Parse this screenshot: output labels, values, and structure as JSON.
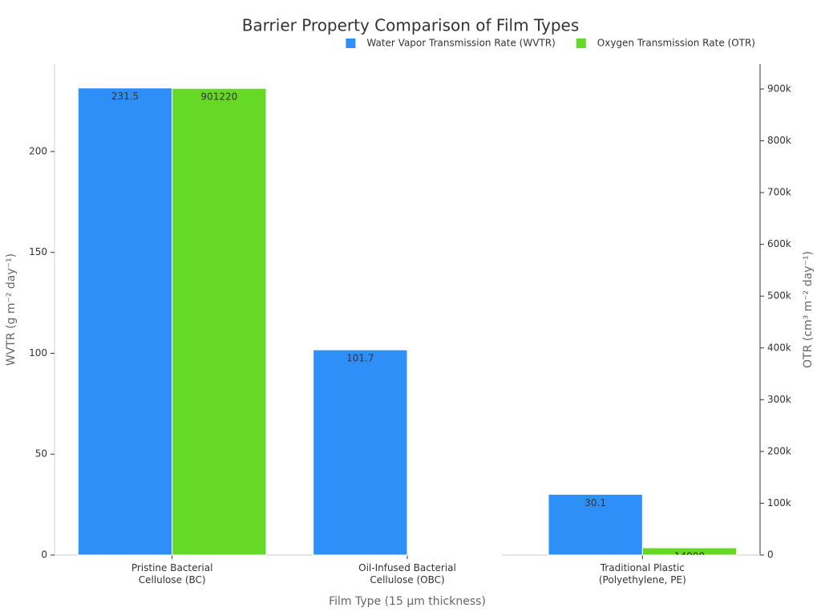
{
  "chart_data": {
    "type": "bar",
    "title": "Barrier Property Comparison of Film Types",
    "x_label": "Film Type (15 µm thickness)",
    "y_label": "WVTR (g m⁻² day⁻¹)",
    "y2_label": "OTR (cm³ m⁻² day⁻¹)",
    "categories": [
      "Pristine Bacterial\nCellulose (BC)",
      "Oil-Infused Bacterial\nCellulose (OBC)",
      "Traditional Plastic\n(Polyethylene, PE)"
    ],
    "series": [
      {
        "name": "Water Vapor Transmission Rate (WVTR)",
        "color": "#2e8ff9",
        "values": [
          231.5,
          101.7,
          30.1
        ]
      },
      {
        "name": "Oxygen Transmission Rate (OTR)",
        "color": "#66d926",
        "axis": "y2",
        "values": [
          901220,
          1000,
          14000
        ]
      }
    ],
    "ylim": [
      0,
      243.3
    ],
    "yticks": [
      0,
      50,
      100,
      150,
      200
    ],
    "y2lim": [
      0,
      948000
    ],
    "y2ticks": [
      0,
      {
        "value": 100000,
        "label": "100k"
      },
      {
        "value": 200000,
        "label": "200k"
      },
      {
        "value": 300000,
        "label": "300k"
      },
      {
        "value": 400000,
        "label": "400k"
      },
      {
        "value": 500000,
        "label": "500k"
      },
      {
        "value": 600000,
        "label": "600k"
      },
      {
        "value": 700000,
        "label": "700k"
      },
      {
        "value": 800000,
        "label": "800k"
      },
      {
        "value": 900000,
        "label": "900k"
      }
    ],
    "legend": "top-right"
  }
}
